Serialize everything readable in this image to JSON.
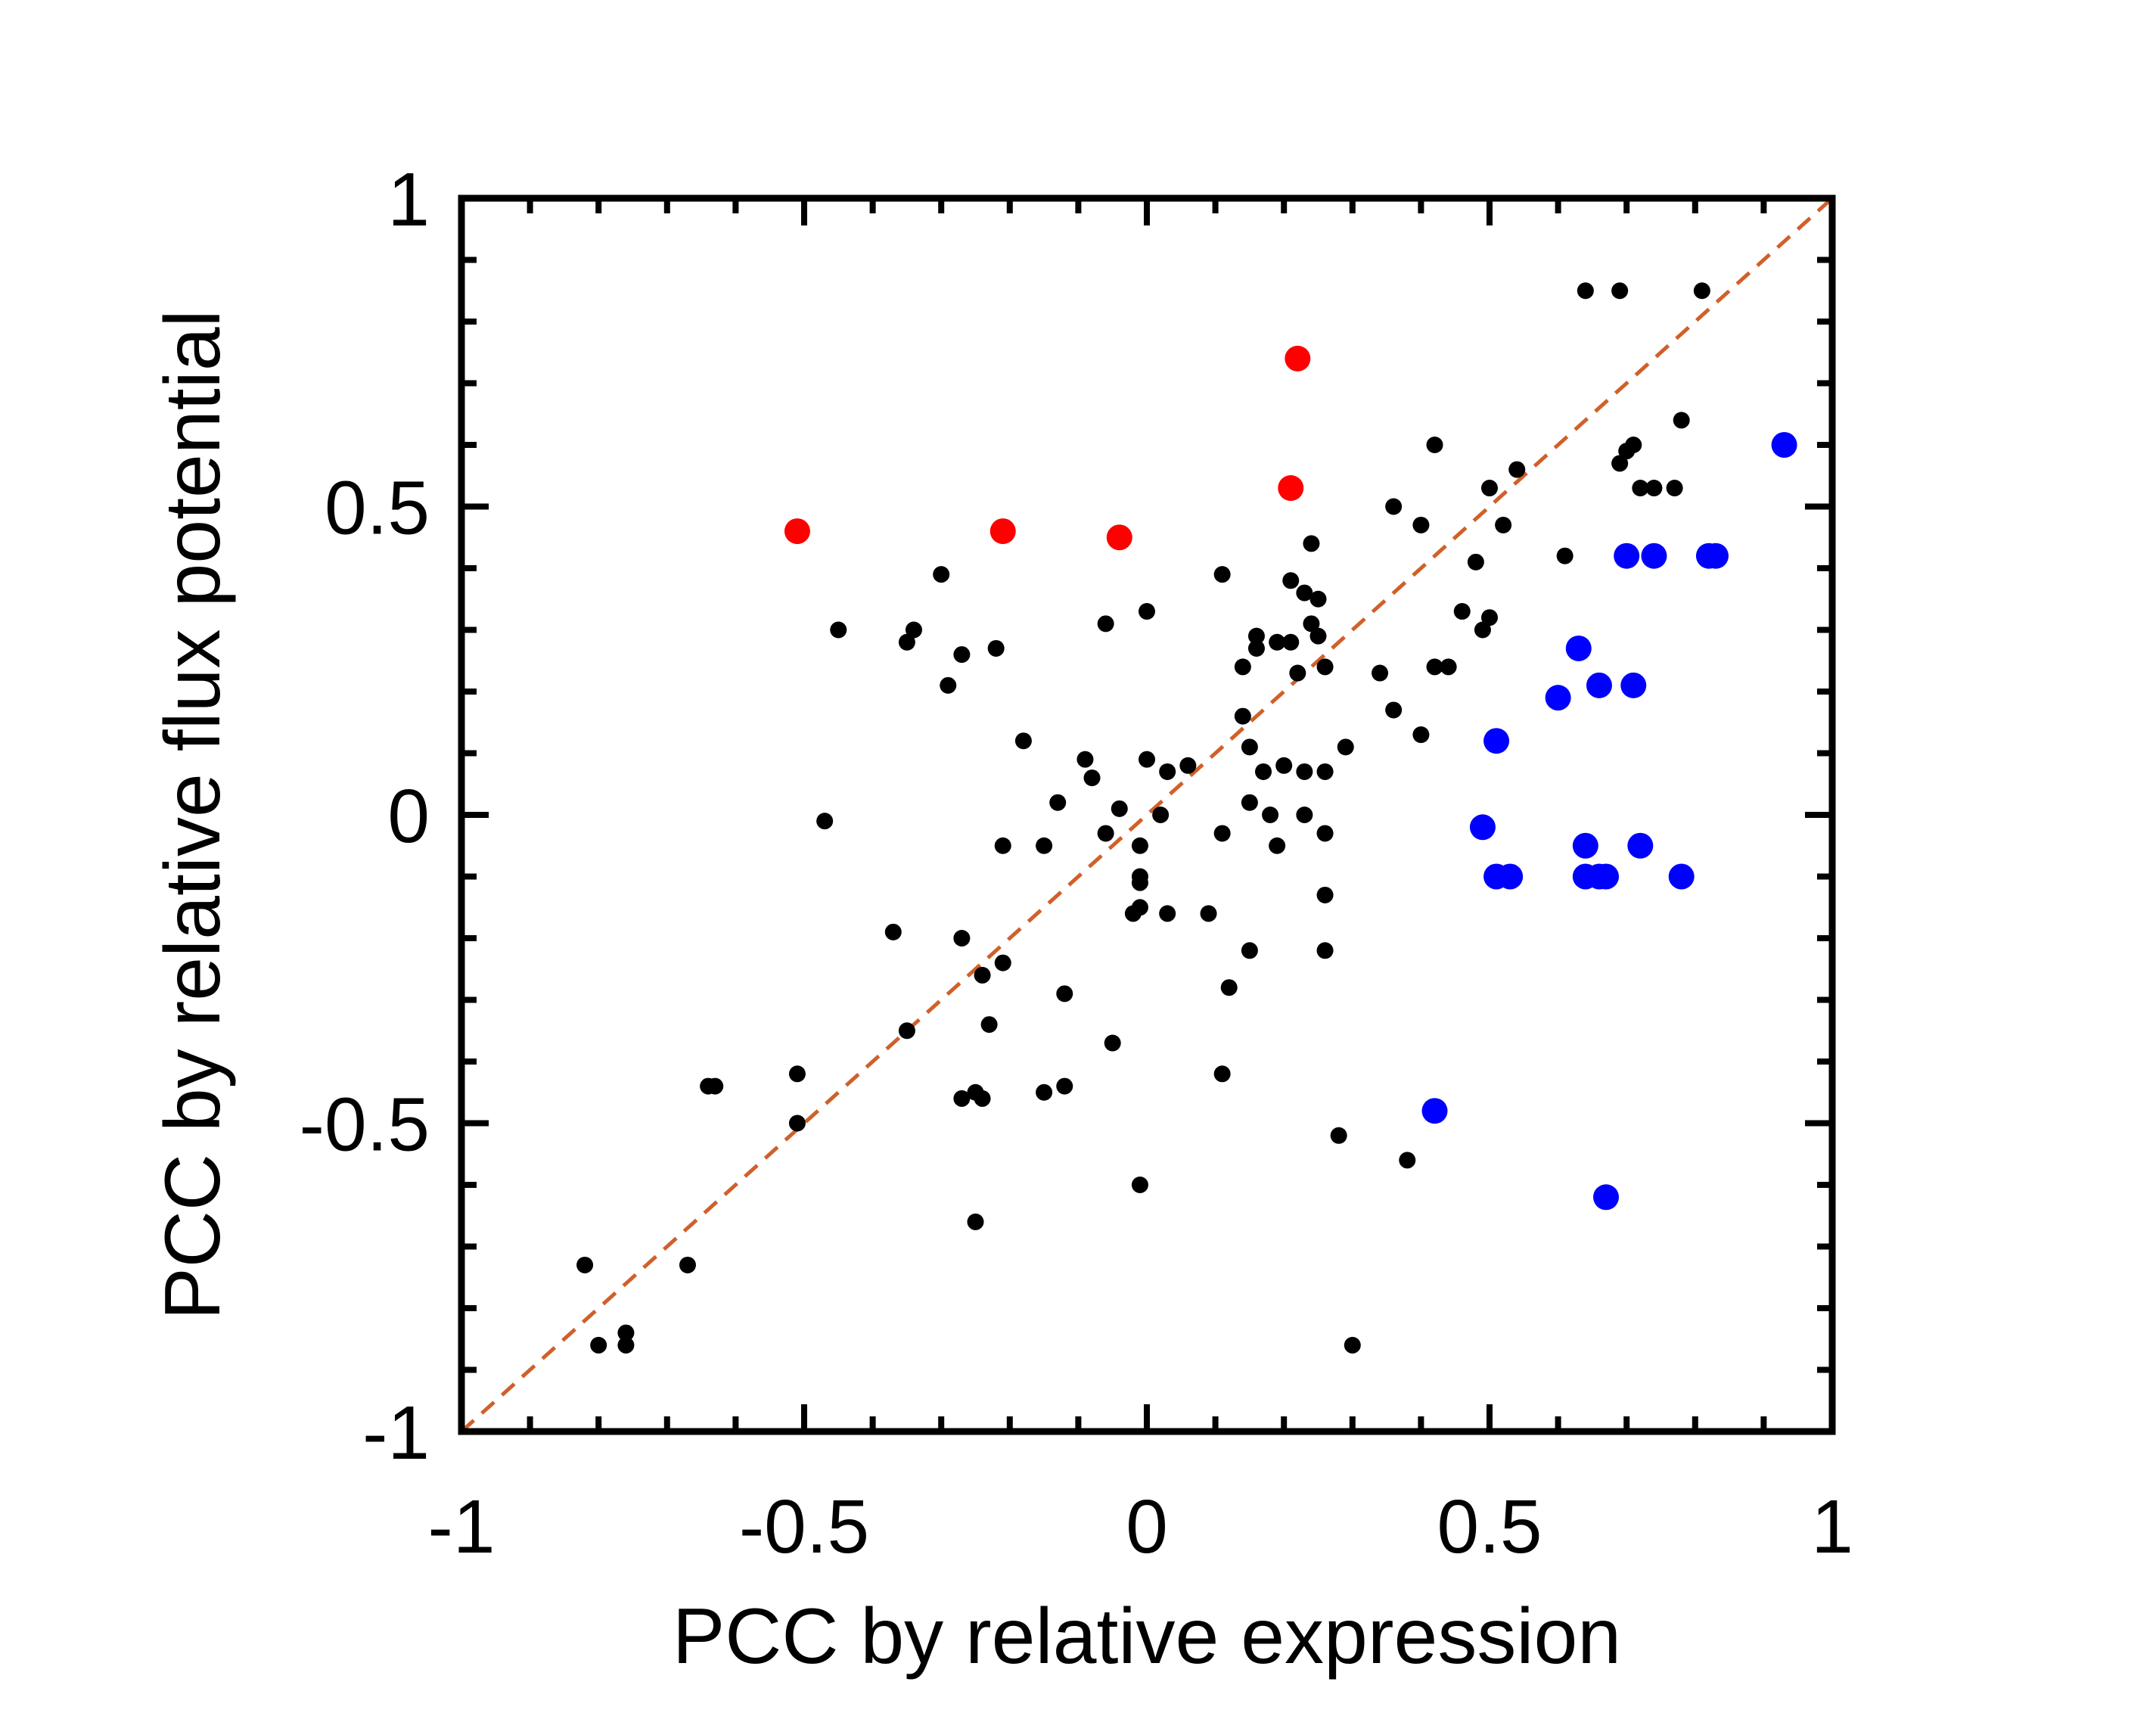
{
  "chart_data": {
    "type": "scatter",
    "xlabel": "PCC by relative expression",
    "ylabel": "PCC by relative flux potential",
    "xlim": [
      -1,
      1
    ],
    "ylim": [
      -1,
      1
    ],
    "x_ticks": [
      "-1",
      "-0.5",
      "0",
      "0.5",
      "1"
    ],
    "y_ticks": [
      "-1",
      "-0.5",
      "0",
      "0.5",
      "1"
    ],
    "grid": false,
    "legend": "none",
    "reference_line": {
      "style": "dashed",
      "color": "#d0602a",
      "from": [
        -1,
        -1
      ],
      "to": [
        1,
        1
      ]
    },
    "series": [
      {
        "color": "#000000",
        "marker": "small-dot",
        "points": [
          [
            0.64,
            0.85
          ],
          [
            0.69,
            0.85
          ],
          [
            0.81,
            0.85
          ],
          [
            0.78,
            0.64
          ],
          [
            0.71,
            0.6
          ],
          [
            0.7,
            0.59
          ],
          [
            0.69,
            0.57
          ],
          [
            0.72,
            0.53
          ],
          [
            0.74,
            0.53
          ],
          [
            0.77,
            0.53
          ],
          [
            0.42,
            0.6
          ],
          [
            0.54,
            0.56
          ],
          [
            0.5,
            0.53
          ],
          [
            0.36,
            0.5
          ],
          [
            0.4,
            0.47
          ],
          [
            0.52,
            0.47
          ],
          [
            0.61,
            0.42
          ],
          [
            0.48,
            0.41
          ],
          [
            0.46,
            0.33
          ],
          [
            0.5,
            0.32
          ],
          [
            0.49,
            0.3
          ],
          [
            0.42,
            0.24
          ],
          [
            0.44,
            0.24
          ],
          [
            0.34,
            0.23
          ],
          [
            0.36,
            0.17
          ],
          [
            0.4,
            0.13
          ],
          [
            0.29,
            0.11
          ],
          [
            0.24,
            0.44
          ],
          [
            0.21,
            0.38
          ],
          [
            0.11,
            0.39
          ],
          [
            0.23,
            0.36
          ],
          [
            0.25,
            0.35
          ],
          [
            0.24,
            0.31
          ],
          [
            0.25,
            0.29
          ],
          [
            0.16,
            0.29
          ],
          [
            0.19,
            0.28
          ],
          [
            0.21,
            0.28
          ],
          [
            0.16,
            0.27
          ],
          [
            0.14,
            0.24
          ],
          [
            0.22,
            0.23
          ],
          [
            0.26,
            0.24
          ],
          [
            0.14,
            0.16
          ],
          [
            0.15,
            0.11
          ],
          [
            0.17,
            0.07
          ],
          [
            0.2,
            0.08
          ],
          [
            0.23,
            0.07
          ],
          [
            0.26,
            0.07
          ],
          [
            0.03,
            0.07
          ],
          [
            0.06,
            0.08
          ],
          [
            0.0,
            0.09
          ],
          [
            0.02,
            0.0
          ],
          [
            -0.04,
            0.01
          ],
          [
            0.15,
            0.02
          ],
          [
            0.18,
            0.0
          ],
          [
            0.23,
            0.0
          ],
          [
            0.26,
            -0.03
          ],
          [
            0.19,
            -0.05
          ],
          [
            0.11,
            -0.03
          ],
          [
            -0.09,
            0.09
          ],
          [
            -0.08,
            0.06
          ],
          [
            -0.18,
            0.12
          ],
          [
            -0.13,
            0.02
          ],
          [
            -0.06,
            -0.03
          ],
          [
            -0.01,
            -0.05
          ],
          [
            -0.01,
            -0.1
          ],
          [
            -0.01,
            -0.11
          ],
          [
            -0.15,
            -0.05
          ],
          [
            -0.21,
            -0.05
          ],
          [
            -0.47,
            -0.01
          ],
          [
            0.26,
            -0.13
          ],
          [
            0.03,
            -0.16
          ],
          [
            0.09,
            -0.16
          ],
          [
            -0.01,
            -0.15
          ],
          [
            -0.02,
            -0.16
          ],
          [
            0.15,
            -0.22
          ],
          [
            0.26,
            -0.22
          ],
          [
            0.12,
            -0.28
          ],
          [
            -0.21,
            -0.24
          ],
          [
            -0.24,
            -0.26
          ],
          [
            -0.27,
            -0.2
          ],
          [
            -0.37,
            -0.19
          ],
          [
            -0.12,
            -0.29
          ],
          [
            -0.23,
            -0.34
          ],
          [
            -0.05,
            -0.37
          ],
          [
            -0.35,
            -0.35
          ],
          [
            0.11,
            -0.42
          ],
          [
            -0.15,
            -0.45
          ],
          [
            -0.12,
            -0.44
          ],
          [
            -0.25,
            -0.45
          ],
          [
            -0.24,
            -0.46
          ],
          [
            -0.27,
            -0.46
          ],
          [
            -0.64,
            -0.44
          ],
          [
            -0.63,
            -0.44
          ],
          [
            -0.51,
            -0.42
          ],
          [
            -0.51,
            -0.5
          ],
          [
            0.28,
            -0.52
          ],
          [
            0.38,
            -0.56
          ],
          [
            -0.01,
            -0.6
          ],
          [
            -0.25,
            -0.66
          ],
          [
            -0.82,
            -0.73
          ],
          [
            -0.67,
            -0.73
          ],
          [
            -0.8,
            -0.86
          ],
          [
            -0.76,
            -0.86
          ],
          [
            -0.76,
            -0.84
          ],
          [
            0.3,
            -0.86
          ],
          [
            -0.45,
            0.3
          ],
          [
            -0.35,
            0.28
          ],
          [
            -0.34,
            0.3
          ],
          [
            -0.3,
            0.39
          ],
          [
            -0.27,
            0.26
          ],
          [
            -0.22,
            0.27
          ],
          [
            -0.29,
            0.21
          ],
          [
            -0.06,
            0.31
          ],
          [
            0.0,
            0.33
          ]
        ]
      },
      {
        "color": "#ff0000",
        "marker": "large-dot",
        "points": [
          [
            0.22,
            0.74
          ],
          [
            0.21,
            0.53
          ],
          [
            -0.51,
            0.46
          ],
          [
            -0.21,
            0.46
          ],
          [
            -0.04,
            0.45
          ]
        ]
      },
      {
        "color": "#0000ff",
        "marker": "large-dot",
        "points": [
          [
            0.93,
            0.6
          ],
          [
            0.7,
            0.42
          ],
          [
            0.74,
            0.42
          ],
          [
            0.82,
            0.42
          ],
          [
            0.83,
            0.42
          ],
          [
            0.63,
            0.27
          ],
          [
            0.6,
            0.19
          ],
          [
            0.66,
            0.21
          ],
          [
            0.71,
            0.21
          ],
          [
            0.51,
            0.12
          ],
          [
            0.49,
            -0.02
          ],
          [
            0.64,
            -0.05
          ],
          [
            0.72,
            -0.05
          ],
          [
            0.51,
            -0.1
          ],
          [
            0.53,
            -0.1
          ],
          [
            0.64,
            -0.1
          ],
          [
            0.66,
            -0.1
          ],
          [
            0.67,
            -0.1
          ],
          [
            0.78,
            -0.1
          ],
          [
            0.42,
            -0.48
          ],
          [
            0.67,
            -0.62
          ]
        ]
      }
    ]
  }
}
